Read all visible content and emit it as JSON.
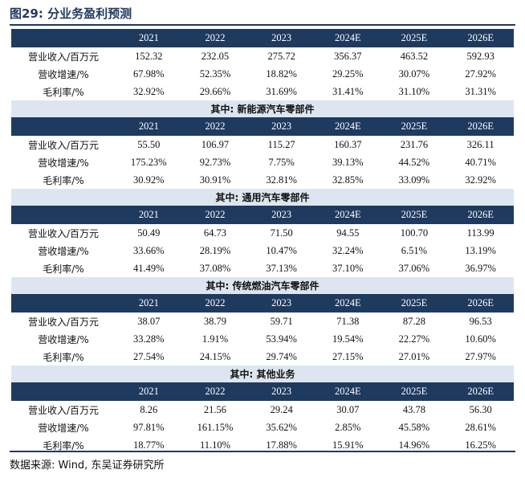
{
  "title": "图29:  分业务盈利预测",
  "years": [
    "2021",
    "2022",
    "2023",
    "2024E",
    "2025E",
    "2026E"
  ],
  "row_labels": [
    "营业收入/百万元",
    "营收增速/%",
    "毛利率/%"
  ],
  "blocks": [
    {
      "section": "",
      "rows": [
        [
          "152.32",
          "232.05",
          "275.72",
          "356.37",
          "463.52",
          "592.93"
        ],
        [
          "67.98%",
          "52.35%",
          "18.82%",
          "29.25%",
          "30.07%",
          "27.92%"
        ],
        [
          "32.92%",
          "29.66%",
          "31.69%",
          "31.41%",
          "31.10%",
          "31.31%"
        ]
      ]
    },
    {
      "section": "其中:  新能源汽车零部件",
      "rows": [
        [
          "55.50",
          "106.97",
          "115.27",
          "160.37",
          "231.76",
          "326.11"
        ],
        [
          "175.23%",
          "92.73%",
          "7.75%",
          "39.13%",
          "44.52%",
          "40.71%"
        ],
        [
          "30.92%",
          "30.91%",
          "32.81%",
          "32.85%",
          "33.09%",
          "32.92%"
        ]
      ]
    },
    {
      "section": "其中:  通用汽车零部件",
      "rows": [
        [
          "50.49",
          "64.73",
          "71.50",
          "94.55",
          "100.70",
          "113.99"
        ],
        [
          "33.66%",
          "28.19%",
          "10.47%",
          "32.24%",
          "6.51%",
          "13.19%"
        ],
        [
          "41.49%",
          "37.08%",
          "37.13%",
          "37.10%",
          "37.06%",
          "36.97%"
        ]
      ]
    },
    {
      "section": "其中:  传统燃油汽车零部件",
      "rows": [
        [
          "38.07",
          "38.79",
          "59.71",
          "71.38",
          "87.28",
          "96.53"
        ],
        [
          "33.28%",
          "1.91%",
          "53.94%",
          "19.54%",
          "22.27%",
          "10.60%"
        ],
        [
          "27.54%",
          "24.15%",
          "29.74%",
          "27.15%",
          "27.01%",
          "27.97%"
        ]
      ]
    },
    {
      "section": "其中:  其他业务",
      "rows": [
        [
          "8.26",
          "21.56",
          "29.24",
          "30.07",
          "43.78",
          "56.30"
        ],
        [
          "97.81%",
          "161.15%",
          "35.62%",
          "2.85%",
          "45.58%",
          "28.61%"
        ],
        [
          "18.77%",
          "11.10%",
          "17.88%",
          "15.91%",
          "14.96%",
          "16.25%"
        ]
      ]
    }
  ],
  "source": "数据来源:  Wind,  东吴证券研究所",
  "colors": {
    "header_bg": "#1f3a5f",
    "section_bg": "#dde6f0"
  }
}
